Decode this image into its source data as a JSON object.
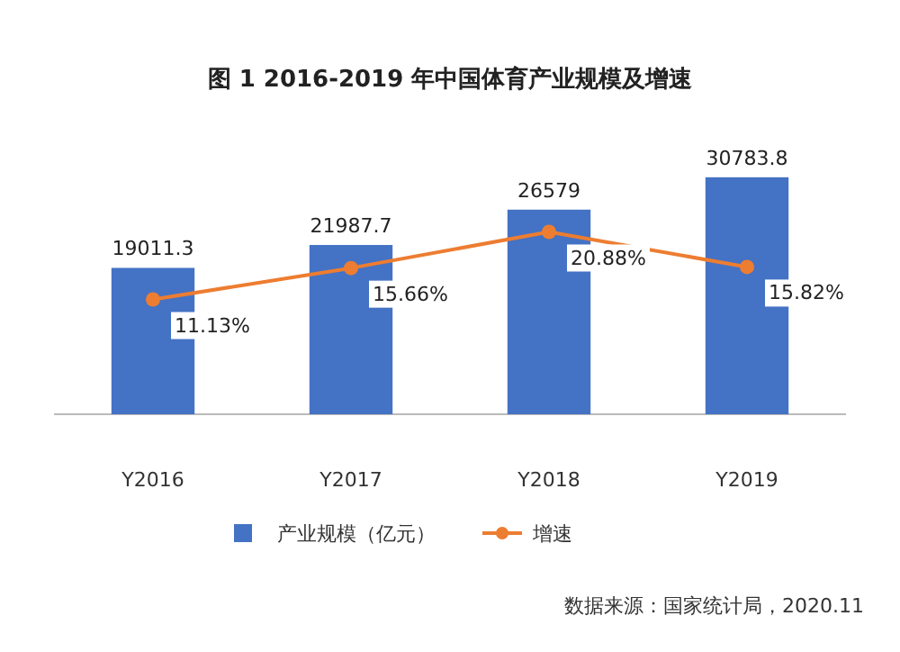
{
  "chart_data": {
    "type": "bar",
    "title": "图 1    2016-2019 年中国体育产业规模及增速",
    "categories": [
      "Y2016",
      "Y2017",
      "Y2018",
      "Y2019"
    ],
    "series": [
      {
        "name": "产业规模（亿元）",
        "color": "#4472c4",
        "values": [
          19011.3,
          21987.7,
          26579,
          30783.8
        ],
        "value_labels": [
          "19011.3",
          "21987.7",
          "26579",
          "30783.8"
        ]
      },
      {
        "name": "增速",
        "type": "line",
        "axis": "y2",
        "color": "#ed7d31",
        "marker": "circle",
        "values": [
          11.13,
          15.66,
          20.88,
          15.82
        ],
        "value_labels": [
          "11.13%",
          "15.66%",
          "20.88%",
          "15.82%"
        ]
      }
    ],
    "tick_labels": "x",
    "legend": "bottom",
    "annotations": [
      "数据来源：国家统计局，2020.11"
    ]
  }
}
